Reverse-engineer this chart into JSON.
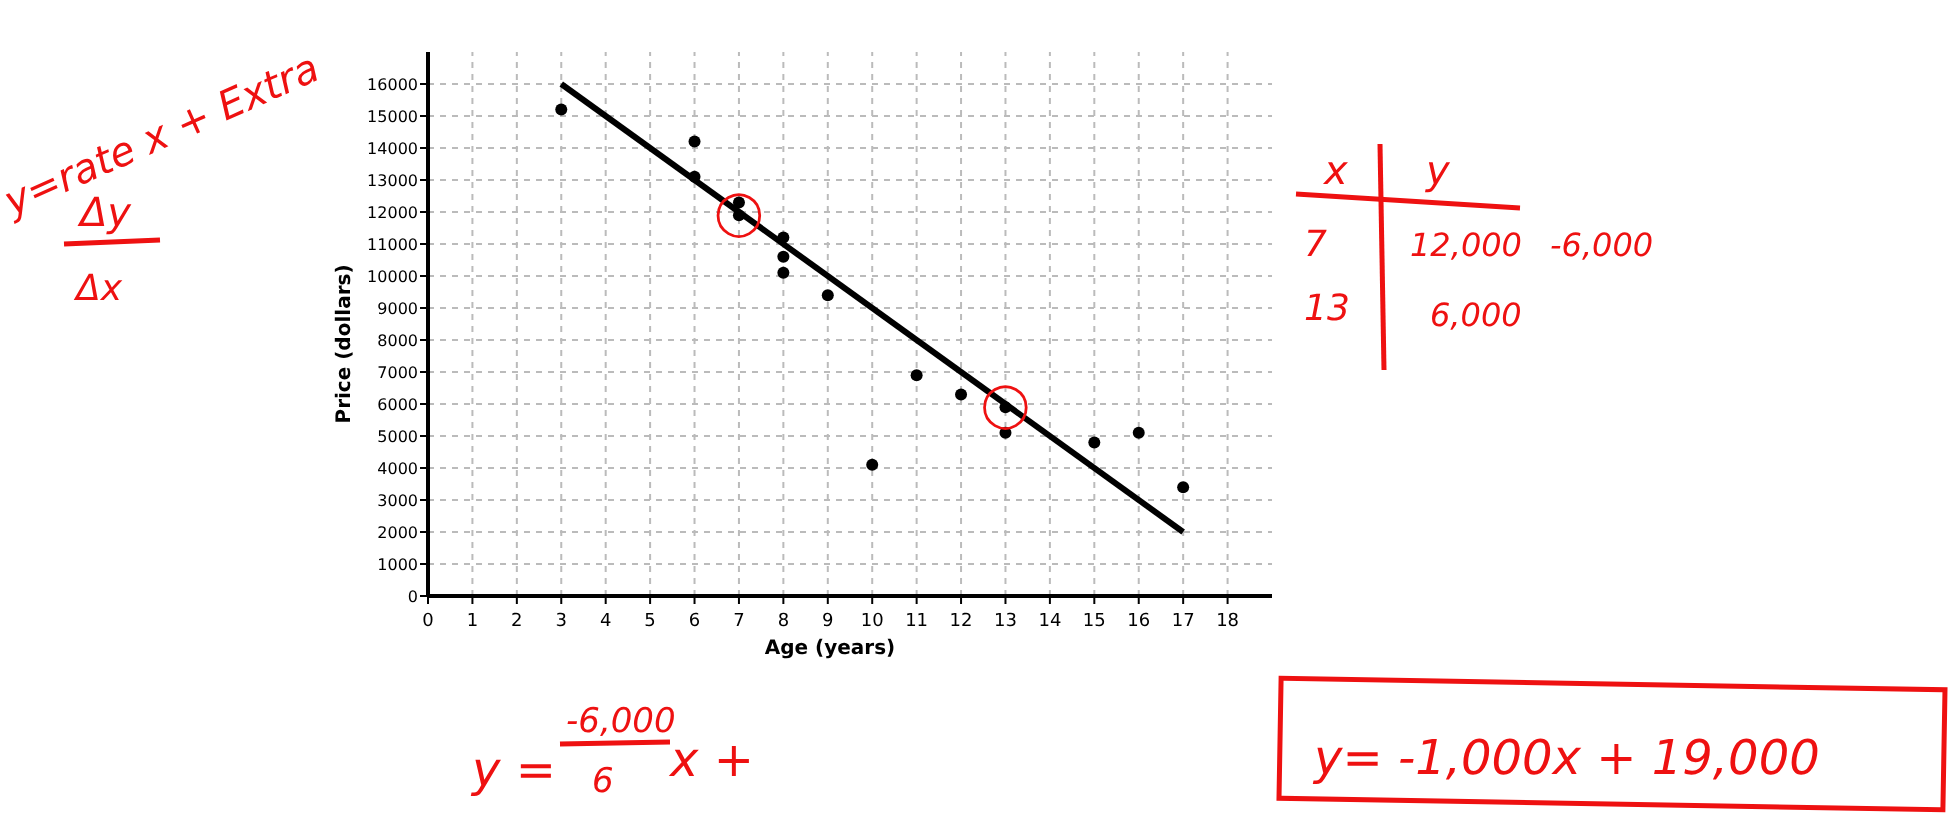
{
  "chart_data": {
    "type": "scatter",
    "xlabel": "Age (years)",
    "ylabel": "Price (dollars)",
    "xlim": [
      0,
      19
    ],
    "ylim": [
      0,
      17000
    ],
    "xticks": [
      0,
      1,
      2,
      3,
      4,
      5,
      6,
      7,
      8,
      9,
      10,
      11,
      12,
      13,
      14,
      15,
      16,
      17,
      18
    ],
    "yticks": [
      0,
      1000,
      2000,
      3000,
      4000,
      5000,
      6000,
      7000,
      8000,
      9000,
      10000,
      11000,
      12000,
      13000,
      14000,
      15000,
      16000
    ],
    "grid": true,
    "series": [
      {
        "type": "line",
        "color": "#000000",
        "x": [
          3,
          17
        ],
        "values": [
          16000,
          2000
        ]
      },
      {
        "marker": "circle",
        "color": "#000000",
        "x": [
          3,
          6,
          6,
          7,
          7,
          8,
          8,
          8,
          9,
          10,
          11,
          12,
          13,
          13,
          15,
          16,
          17
        ],
        "values": [
          15200,
          14200,
          13100,
          12300,
          11900,
          11200,
          10600,
          10100,
          9400,
          4100,
          6900,
          6300,
          5900,
          5100,
          4800,
          5100,
          3400
        ]
      }
    ],
    "annotations": [
      "y=rate x + Extra",
      "Δy",
      "Δx",
      "x",
      "y",
      "7",
      "13",
      "12,000",
      "6,000",
      "-6,000",
      "y =",
      "-6,000",
      "6",
      "x  +",
      "y= -1,000x + 19,000",
      {
        "text": "◯",
        "x": 7,
        "y": 12000
      },
      {
        "text": "◯",
        "x": 13,
        "y": 6000
      }
    ]
  }
}
